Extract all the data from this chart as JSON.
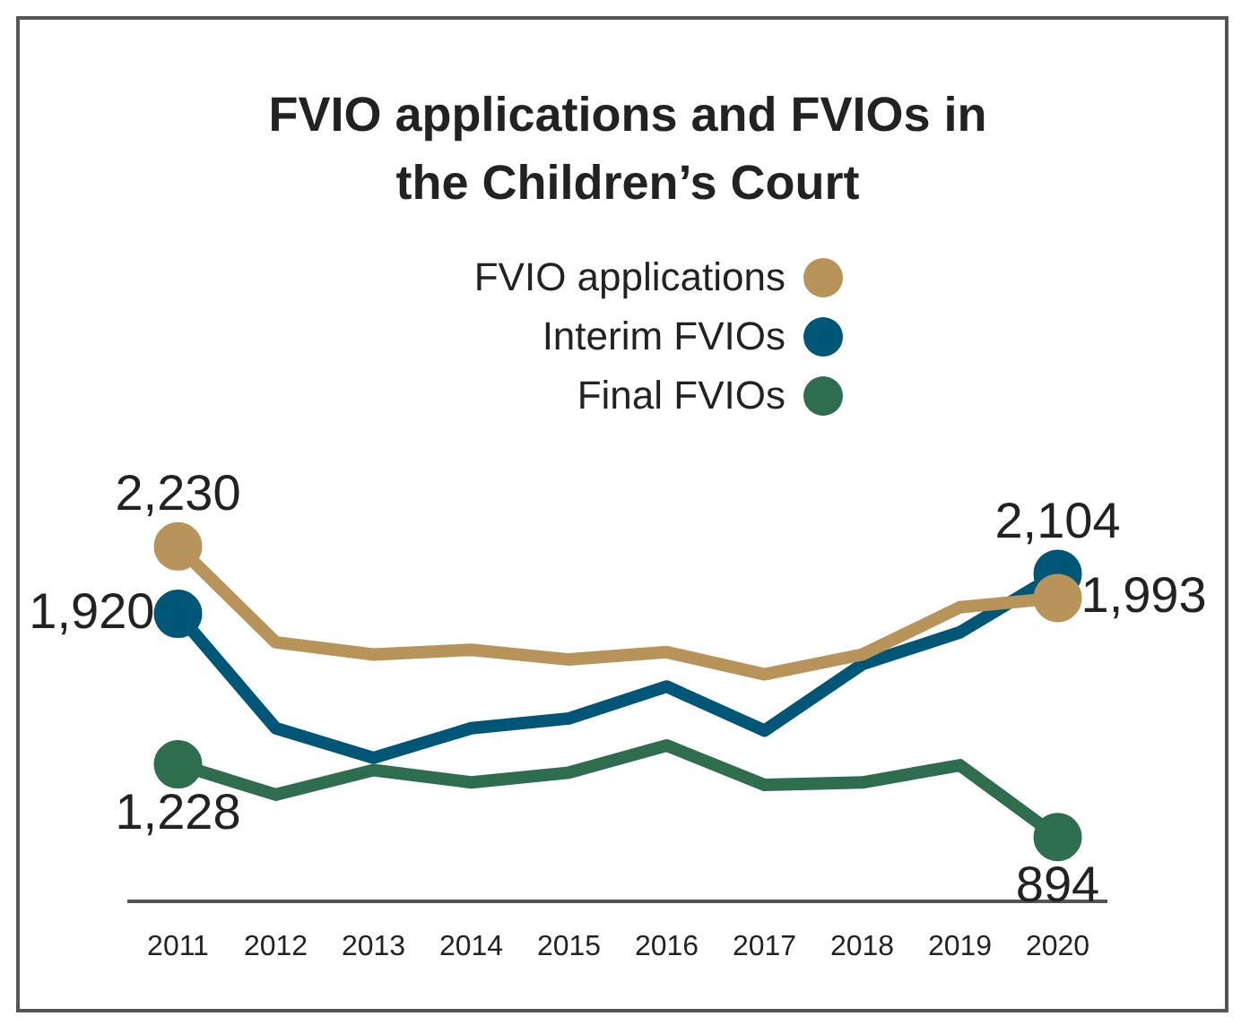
{
  "chart_data": {
    "type": "line",
    "title": "FVIO applications and FVIOs in the Children’s Court",
    "categories": [
      "2011",
      "2012",
      "2013",
      "2014",
      "2015",
      "2016",
      "2017",
      "2018",
      "2019",
      "2020"
    ],
    "series": [
      {
        "name": "FVIO applications",
        "color": "#b8935a",
        "values": [
          2230,
          1789,
          1733,
          1755,
          1710,
          1744,
          1642,
          1733,
          1950,
          1993
        ],
        "value_labels": [
          "2,230",
          null,
          null,
          null,
          null,
          null,
          null,
          null,
          null,
          "1,993"
        ]
      },
      {
        "name": "Interim FVIOs",
        "color": "#005677",
        "values": [
          1920,
          1394,
          1258,
          1394,
          1439,
          1586,
          1383,
          1688,
          1835,
          2104
        ],
        "value_labels": [
          "1,920",
          null,
          null,
          null,
          null,
          null,
          null,
          null,
          null,
          "2,104"
        ]
      },
      {
        "name": "Final FVIOs",
        "color": "#2e6e4e",
        "values": [
          1228,
          1089,
          1202,
          1145,
          1190,
          1315,
          1134,
          1145,
          1224,
          894
        ],
        "value_labels": [
          "1,228",
          null,
          null,
          null,
          null,
          null,
          null,
          null,
          null,
          "894"
        ]
      }
    ],
    "legend": "top",
    "grid": false,
    "line_style": "solid"
  }
}
